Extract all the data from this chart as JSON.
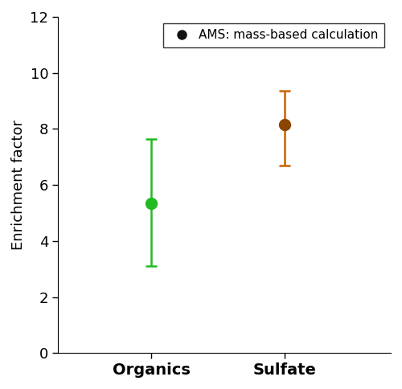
{
  "categories": [
    "Organics",
    "Sulfate"
  ],
  "values": [
    5.35,
    8.15
  ],
  "errors_upper": [
    2.3,
    1.2
  ],
  "errors_lower": [
    2.25,
    1.45
  ],
  "colors": [
    "#22bb22",
    "#8B4500"
  ],
  "error_colors": [
    "#22bb22",
    "#c86400"
  ],
  "ylabel": "Enrichment factor",
  "ylim": [
    0,
    12
  ],
  "yticks": [
    0,
    2,
    4,
    6,
    8,
    10,
    12
  ],
  "legend_label": "AMS: mass-based calculation",
  "legend_marker_color": "#111111",
  "marker_size": 10,
  "error_linewidth": 1.8,
  "capsize": 5,
  "x_positions": [
    1,
    2
  ],
  "xlim": [
    0.3,
    2.8
  ]
}
